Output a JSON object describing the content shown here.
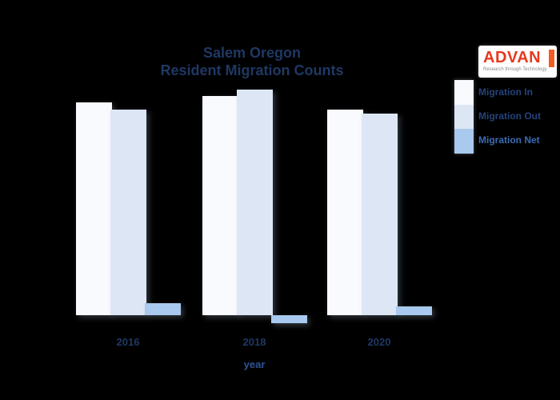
{
  "background_color": "#000000",
  "title": {
    "line1": "Salem Oregon",
    "line2": "Resident Migration Counts",
    "color": "#1f3864"
  },
  "logo": {
    "name": "ADVAN",
    "tagline": "Research through Technology",
    "name_color": "#e8391d",
    "accent_color": "#f25c22",
    "background": "#ffffff"
  },
  "legend": {
    "position": "right",
    "items": [
      {
        "label": "Migration In",
        "color": "#f9fafe",
        "label_color": "#24427a"
      },
      {
        "label": "Migration Out",
        "color": "#dce6f5",
        "label_color": "#24427a"
      },
      {
        "label": "Migration Net",
        "color": "#a9c9ee",
        "label_color": "#3b6cb4"
      }
    ]
  },
  "x_axis": {
    "label": "year",
    "tick_color": "#1f3864"
  },
  "chart_data": {
    "type": "bar",
    "title": "Salem Oregon Resident Migration Counts",
    "xlabel": "year",
    "ylabel": "",
    "categories": [
      "2016",
      "2018",
      "2020"
    ],
    "series": [
      {
        "name": "Migration In",
        "color": "#f9fafe",
        "values": [
          26600,
          27400,
          25700
        ]
      },
      {
        "name": "Migration Out",
        "color": "#dce6f5",
        "values": [
          25700,
          28200,
          25200
        ]
      },
      {
        "name": "Migration Net",
        "color": "#a9c9ee",
        "values": [
          1500,
          -1000,
          1100
        ]
      }
    ],
    "ylim": [
      -2000,
      30000
    ],
    "grid": false,
    "legend_position": "right",
    "y_axis_shown": false
  }
}
